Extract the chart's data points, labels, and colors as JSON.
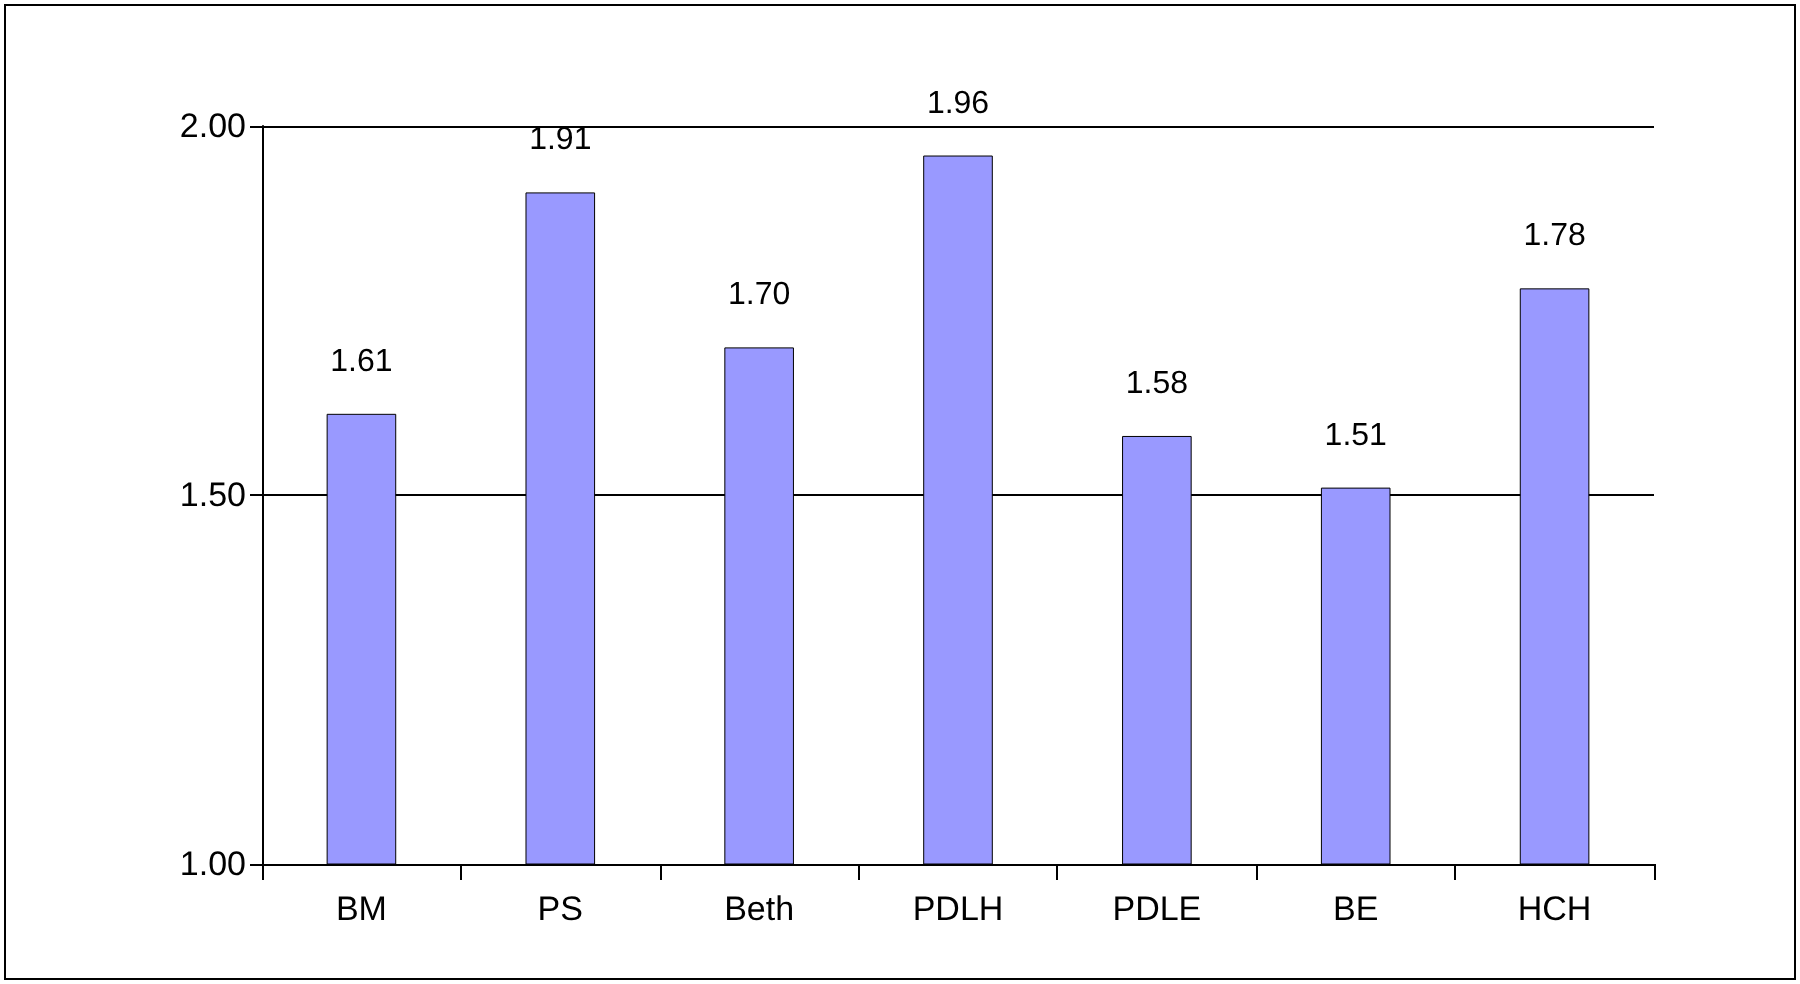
{
  "chart_data": {
    "type": "bar",
    "categories": [
      "BM",
      "PS",
      "Beth",
      "PDLH",
      "PDLE",
      "BE",
      "HCH"
    ],
    "values": [
      1.61,
      1.91,
      1.7,
      1.96,
      1.58,
      1.51,
      1.78
    ],
    "value_labels": [
      "1.61",
      "1.91",
      "1.70",
      "1.96",
      "1.58",
      "1.51",
      "1.78"
    ],
    "color": "#9999ff",
    "ylim": [
      1,
      2
    ],
    "yticks": [
      {
        "value": 1,
        "label": "1.00"
      },
      {
        "value": 1.5,
        "label": "1.50"
      },
      {
        "value": 2,
        "label": "2.00"
      }
    ],
    "grid": "y"
  }
}
